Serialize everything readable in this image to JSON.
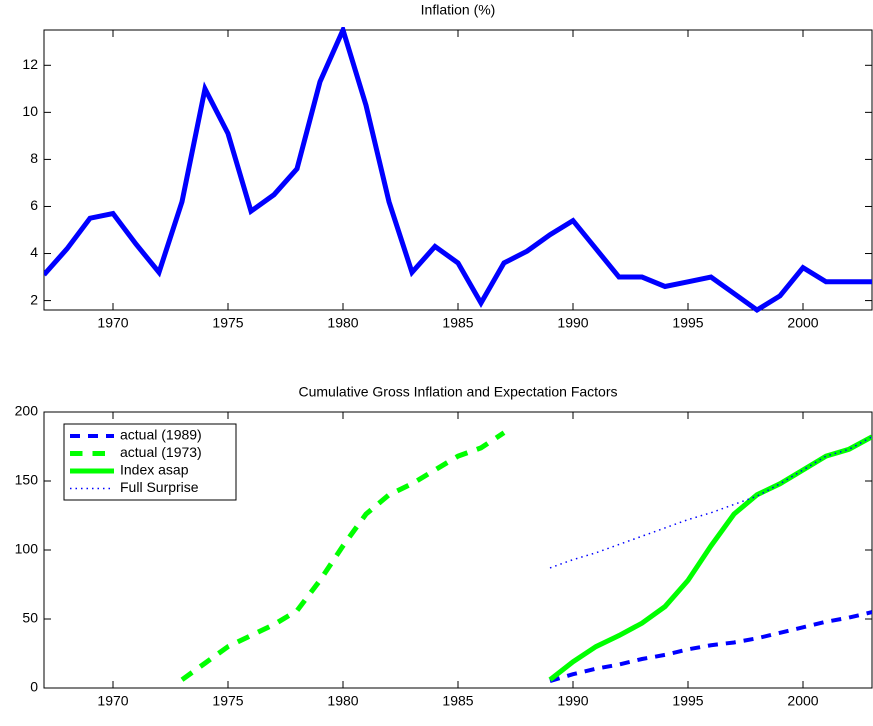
{
  "chart_data": [
    {
      "type": "line",
      "title": "Inflation (%)",
      "x": [
        1967,
        1968,
        1969,
        1970,
        1971,
        1972,
        1973,
        1974,
        1975,
        1976,
        1977,
        1978,
        1979,
        1980,
        1981,
        1982,
        1983,
        1984,
        1985,
        1986,
        1987,
        1988,
        1989,
        1990,
        1991,
        1992,
        1993,
        1994,
        1995,
        1996,
        1997,
        1998,
        1999,
        2000,
        2001,
        2002,
        2003
      ],
      "series": [
        {
          "color": "#0000ff",
          "linestyle": "solid",
          "width": 5,
          "values": [
            3.1,
            4.2,
            5.5,
            5.7,
            4.4,
            3.2,
            6.2,
            11.0,
            9.1,
            5.8,
            6.5,
            7.6,
            11.3,
            13.5,
            10.3,
            6.2,
            3.2,
            4.3,
            3.6,
            1.9,
            3.6,
            4.1,
            4.8,
            5.4,
            4.2,
            3.0,
            3.0,
            2.6,
            2.8,
            3.0,
            2.3,
            1.6,
            2.2,
            3.4,
            2.8,
            2.8,
            2.8
          ]
        }
      ],
      "xlim": [
        1967,
        2003
      ],
      "xticks": [
        1970,
        1975,
        1980,
        1985,
        1990,
        1995,
        2000
      ],
      "ylim": [
        1.6,
        13.5
      ],
      "yticks": [
        2,
        4,
        6,
        8,
        10,
        12
      ]
    },
    {
      "type": "line",
      "title": "Cumulative Gross Inflation and Expectation Factors",
      "series": [
        {
          "name": "actual (1989)",
          "color": "#0000ff",
          "linestyle": "dashed",
          "width": 4,
          "x": [
            1989,
            1990,
            1991,
            1992,
            1993,
            1994,
            1995,
            1996,
            1997,
            1998,
            1999,
            2000,
            2001,
            2002,
            2003
          ],
          "values": [
            5,
            10,
            14,
            17,
            21,
            24,
            28,
            31,
            33,
            36,
            40,
            44,
            48,
            51,
            55
          ]
        },
        {
          "name": "actual (1973)",
          "color": "#00ff00",
          "linestyle": "dashed",
          "width": 5,
          "x": [
            1973,
            1974,
            1975,
            1976,
            1977,
            1978,
            1979,
            1980,
            1981,
            1982,
            1983,
            1984,
            1985,
            1986,
            1987
          ],
          "values": [
            6,
            18,
            30,
            38,
            46,
            56,
            78,
            103,
            126,
            140,
            148,
            158,
            168,
            174,
            185
          ]
        },
        {
          "name": "Index asap",
          "color": "#00ff00",
          "linestyle": "solid",
          "width": 5,
          "x": [
            1989,
            1990,
            1991,
            1992,
            1993,
            1994,
            1995,
            1996,
            1997,
            1998,
            1999,
            2000,
            2001,
            2002,
            2003
          ],
          "values": [
            6,
            19,
            30,
            38,
            47,
            59,
            78,
            103,
            126,
            140,
            148,
            158,
            168,
            173,
            182
          ]
        },
        {
          "name": "Full Surprise",
          "color": "#0000ff",
          "linestyle": "dotted",
          "width": 1.5,
          "x": [
            1989,
            1990,
            1991,
            1992,
            1993,
            1994,
            1995,
            1996,
            1997,
            1998,
            1999,
            2000,
            2001,
            2002,
            2003
          ],
          "values": [
            87,
            93,
            98,
            104,
            110,
            116,
            122,
            127,
            133,
            139,
            148,
            158,
            168,
            173,
            182
          ]
        }
      ],
      "xlim": [
        1967,
        2003
      ],
      "xticks": [
        1970,
        1975,
        1980,
        1985,
        1990,
        1995,
        2000
      ],
      "ylim": [
        0,
        200
      ],
      "yticks": [
        0,
        50,
        100,
        150,
        200
      ],
      "legend": "upper left"
    }
  ]
}
